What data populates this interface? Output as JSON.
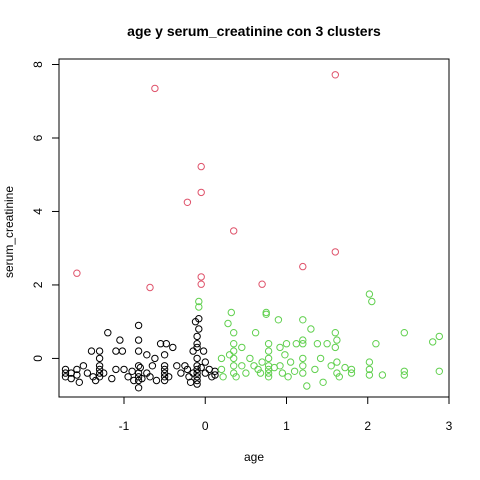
{
  "chart_data": {
    "type": "scatter",
    "title": "age  y  serum_creatinine con  3  clusters",
    "xlabel": "age",
    "ylabel": "serum_creatinine",
    "xlim": [
      -1.8,
      3.0
    ],
    "ylim": [
      -1.05,
      8.15
    ],
    "xticks": [
      -1,
      0,
      1,
      2,
      3
    ],
    "yticks": [
      0,
      2,
      4,
      6,
      8
    ],
    "grid": false,
    "legend": "none",
    "series": [
      {
        "color": "#000000",
        "points": [
          [
            -1.72,
            -0.3
          ],
          [
            -1.72,
            -0.4
          ],
          [
            -1.72,
            -0.5
          ],
          [
            -1.65,
            -0.4
          ],
          [
            -1.65,
            -0.55
          ],
          [
            -1.58,
            -0.3
          ],
          [
            -1.58,
            -0.45
          ],
          [
            -1.55,
            -0.65
          ],
          [
            -1.5,
            -0.2
          ],
          [
            -1.45,
            -0.4
          ],
          [
            -1.4,
            0.2
          ],
          [
            -1.38,
            -0.5
          ],
          [
            -1.35,
            -0.6
          ],
          [
            -1.3,
            0.2
          ],
          [
            -1.3,
            0.0
          ],
          [
            -1.3,
            -0.2
          ],
          [
            -1.3,
            -0.3
          ],
          [
            -1.3,
            -0.4
          ],
          [
            -1.3,
            -0.5
          ],
          [
            -1.25,
            -0.4
          ],
          [
            -1.2,
            0.7
          ],
          [
            -1.15,
            -0.55
          ],
          [
            -1.1,
            0.2
          ],
          [
            -1.1,
            -0.3
          ],
          [
            -1.05,
            0.5
          ],
          [
            -1.02,
            0.2
          ],
          [
            -1.0,
            -0.3
          ],
          [
            -0.95,
            -0.5
          ],
          [
            -0.9,
            -0.35
          ],
          [
            -0.88,
            -0.6
          ],
          [
            -0.82,
            0.5
          ],
          [
            -0.8,
            -0.25
          ],
          [
            -0.82,
            0.9
          ],
          [
            -0.82,
            0.2
          ],
          [
            -0.82,
            -0.2
          ],
          [
            -0.82,
            -0.4
          ],
          [
            -0.82,
            -0.5
          ],
          [
            -0.82,
            -0.6
          ],
          [
            -0.82,
            -0.8
          ],
          [
            -0.78,
            -0.55
          ],
          [
            -0.72,
            0.1
          ],
          [
            -0.72,
            -0.4
          ],
          [
            -0.68,
            -0.5
          ],
          [
            -0.65,
            -0.2
          ],
          [
            -0.62,
            0.0
          ],
          [
            -0.6,
            -0.6
          ],
          [
            -0.55,
            0.4
          ],
          [
            -0.5,
            -0.3
          ],
          [
            -0.48,
            0.4
          ],
          [
            -0.5,
            0.1
          ],
          [
            -0.5,
            -0.2
          ],
          [
            -0.5,
            -0.4
          ],
          [
            -0.5,
            -0.5
          ],
          [
            -0.5,
            -0.6
          ],
          [
            -0.45,
            -0.5
          ],
          [
            -0.4,
            0.3
          ],
          [
            -0.35,
            -0.2
          ],
          [
            -0.3,
            -0.4
          ],
          [
            -0.25,
            -0.2
          ],
          [
            -0.22,
            -0.3
          ],
          [
            -0.2,
            -0.5
          ],
          [
            -0.18,
            -0.65
          ],
          [
            -0.15,
            0.2
          ],
          [
            -0.15,
            -0.4
          ],
          [
            -0.12,
            1.0
          ],
          [
            -0.1,
            0.6
          ],
          [
            -0.1,
            0.4
          ],
          [
            -0.1,
            0.3
          ],
          [
            -0.1,
            0.0
          ],
          [
            -0.1,
            -0.2
          ],
          [
            -0.1,
            -0.3
          ],
          [
            -0.1,
            -0.4
          ],
          [
            -0.1,
            -0.5
          ],
          [
            -0.1,
            -0.6
          ],
          [
            -0.1,
            -0.7
          ],
          [
            -0.08,
            0.8
          ],
          [
            -0.08,
            1.08
          ],
          [
            -0.05,
            -0.25
          ],
          [
            -0.02,
            0.2
          ],
          [
            0.0,
            -0.1
          ],
          [
            0.0,
            -0.4
          ],
          [
            0.05,
            -0.3
          ],
          [
            0.12,
            -0.35
          ],
          [
            0.12,
            -0.45
          ],
          [
            0.08,
            -0.5
          ]
        ]
      },
      {
        "color": "#DF536B",
        "points": [
          [
            -1.58,
            2.32
          ],
          [
            -0.62,
            7.35
          ],
          [
            -0.68,
            1.93
          ],
          [
            -0.22,
            4.25
          ],
          [
            -0.05,
            5.22
          ],
          [
            -0.05,
            4.52
          ],
          [
            -0.05,
            2.22
          ],
          [
            -0.05,
            2.02
          ],
          [
            0.35,
            3.47
          ],
          [
            0.7,
            2.02
          ],
          [
            1.2,
            2.5
          ],
          [
            1.6,
            7.72
          ],
          [
            1.6,
            2.9
          ]
        ]
      },
      {
        "color": "#61D04F",
        "points": [
          [
            -0.08,
            1.55
          ],
          [
            -0.08,
            1.4
          ],
          [
            0.2,
            0.0
          ],
          [
            0.2,
            -0.3
          ],
          [
            0.22,
            -0.5
          ],
          [
            0.28,
            0.95
          ],
          [
            0.3,
            0.1
          ],
          [
            0.32,
            1.25
          ],
          [
            0.35,
            0.7
          ],
          [
            0.35,
            0.4
          ],
          [
            0.35,
            0.2
          ],
          [
            0.35,
            0.0
          ],
          [
            0.35,
            -0.2
          ],
          [
            0.35,
            -0.4
          ],
          [
            0.38,
            -0.5
          ],
          [
            0.45,
            0.3
          ],
          [
            0.45,
            -0.2
          ],
          [
            0.5,
            -0.4
          ],
          [
            0.55,
            0.0
          ],
          [
            0.6,
            -0.2
          ],
          [
            0.62,
            0.7
          ],
          [
            0.65,
            -0.3
          ],
          [
            0.68,
            -0.4
          ],
          [
            0.7,
            -0.1
          ],
          [
            0.75,
            1.25
          ],
          [
            0.75,
            1.2
          ],
          [
            0.78,
            0.4
          ],
          [
            0.78,
            0.2
          ],
          [
            0.78,
            0.0
          ],
          [
            0.78,
            -0.2
          ],
          [
            0.78,
            -0.3
          ],
          [
            0.78,
            -0.4
          ],
          [
            0.78,
            -0.5
          ],
          [
            0.85,
            -0.25
          ],
          [
            0.9,
            1.05
          ],
          [
            0.92,
            0.3
          ],
          [
            0.92,
            -0.2
          ],
          [
            0.95,
            -0.4
          ],
          [
            0.98,
            0.1
          ],
          [
            1.0,
            0.4
          ],
          [
            1.02,
            -0.5
          ],
          [
            1.05,
            -0.1
          ],
          [
            1.1,
            -0.35
          ],
          [
            1.12,
            0.4
          ],
          [
            1.2,
            1.05
          ],
          [
            1.2,
            0.5
          ],
          [
            1.2,
            0.4
          ],
          [
            1.2,
            0.0
          ],
          [
            1.2,
            -0.2
          ],
          [
            1.2,
            -0.4
          ],
          [
            1.25,
            -0.75
          ],
          [
            1.3,
            0.8
          ],
          [
            1.35,
            -0.3
          ],
          [
            1.38,
            0.4
          ],
          [
            1.42,
            0.0
          ],
          [
            1.45,
            -0.65
          ],
          [
            1.5,
            0.4
          ],
          [
            1.55,
            -0.2
          ],
          [
            1.6,
            0.7
          ],
          [
            1.62,
            0.5
          ],
          [
            1.6,
            0.3
          ],
          [
            1.62,
            -0.1
          ],
          [
            1.62,
            -0.4
          ],
          [
            1.65,
            -0.5
          ],
          [
            1.72,
            -0.25
          ],
          [
            1.8,
            -0.3
          ],
          [
            1.8,
            -0.4
          ],
          [
            2.02,
            1.75
          ],
          [
            2.05,
            1.55
          ],
          [
            2.02,
            -0.1
          ],
          [
            2.02,
            -0.3
          ],
          [
            2.02,
            -0.45
          ],
          [
            2.1,
            0.4
          ],
          [
            2.18,
            -0.45
          ],
          [
            2.45,
            0.7
          ],
          [
            2.45,
            -0.35
          ],
          [
            2.45,
            -0.45
          ],
          [
            2.8,
            0.45
          ],
          [
            2.88,
            0.6
          ],
          [
            2.88,
            -0.35
          ]
        ]
      }
    ]
  }
}
